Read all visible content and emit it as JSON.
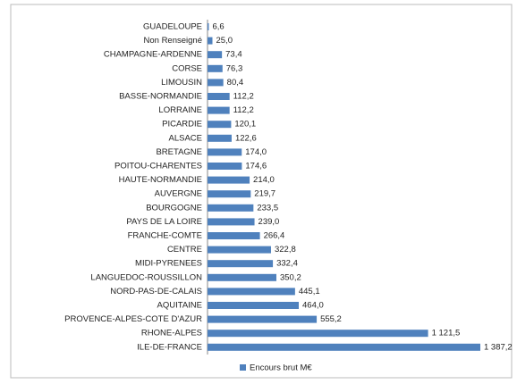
{
  "chart_data": {
    "type": "bar",
    "orientation": "horizontal",
    "categories": [
      "GUADELOUPE",
      "Non Renseigné",
      "CHAMPAGNE-ARDENNE",
      "CORSE",
      "LIMOUSIN",
      "BASSE-NORMANDIE",
      "LORRAINE",
      "PICARDIE",
      "ALSACE",
      "BRETAGNE",
      "POITOU-CHARENTES",
      "HAUTE-NORMANDIE",
      "AUVERGNE",
      "BOURGOGNE",
      "PAYS DE LA LOIRE",
      "FRANCHE-COMTE",
      "CENTRE",
      "MIDI-PYRENEES",
      "LANGUEDOC-ROUSSILLON",
      "NORD-PAS-DE-CALAIS",
      "AQUITAINE",
      "PROVENCE-ALPES-COTE D'AZUR",
      "RHONE-ALPES",
      "ILE-DE-FRANCE"
    ],
    "series": [
      {
        "name": "Encours brut M€",
        "color": "#4f81bd",
        "values": [
          6.6,
          25.0,
          73.4,
          76.3,
          80.4,
          112.2,
          112.2,
          120.1,
          122.6,
          174.0,
          174.6,
          214.0,
          219.7,
          233.5,
          239.0,
          266.4,
          322.8,
          332.4,
          350.2,
          445.1,
          464.0,
          555.2,
          1121.5,
          1387.2
        ],
        "value_labels": [
          "6,6",
          "25,0",
          "73,4",
          "76,3",
          "80,4",
          "112,2",
          "112,2",
          "120,1",
          "122,6",
          "174,0",
          "174,6",
          "214,0",
          "219,7",
          "233,5",
          "239,0",
          "266,4",
          "322,8",
          "332,4",
          "350,2",
          "445,1",
          "464,0",
          "555,2",
          "1 121,5",
          "1 387,2"
        ]
      }
    ],
    "legend": "bottom"
  }
}
